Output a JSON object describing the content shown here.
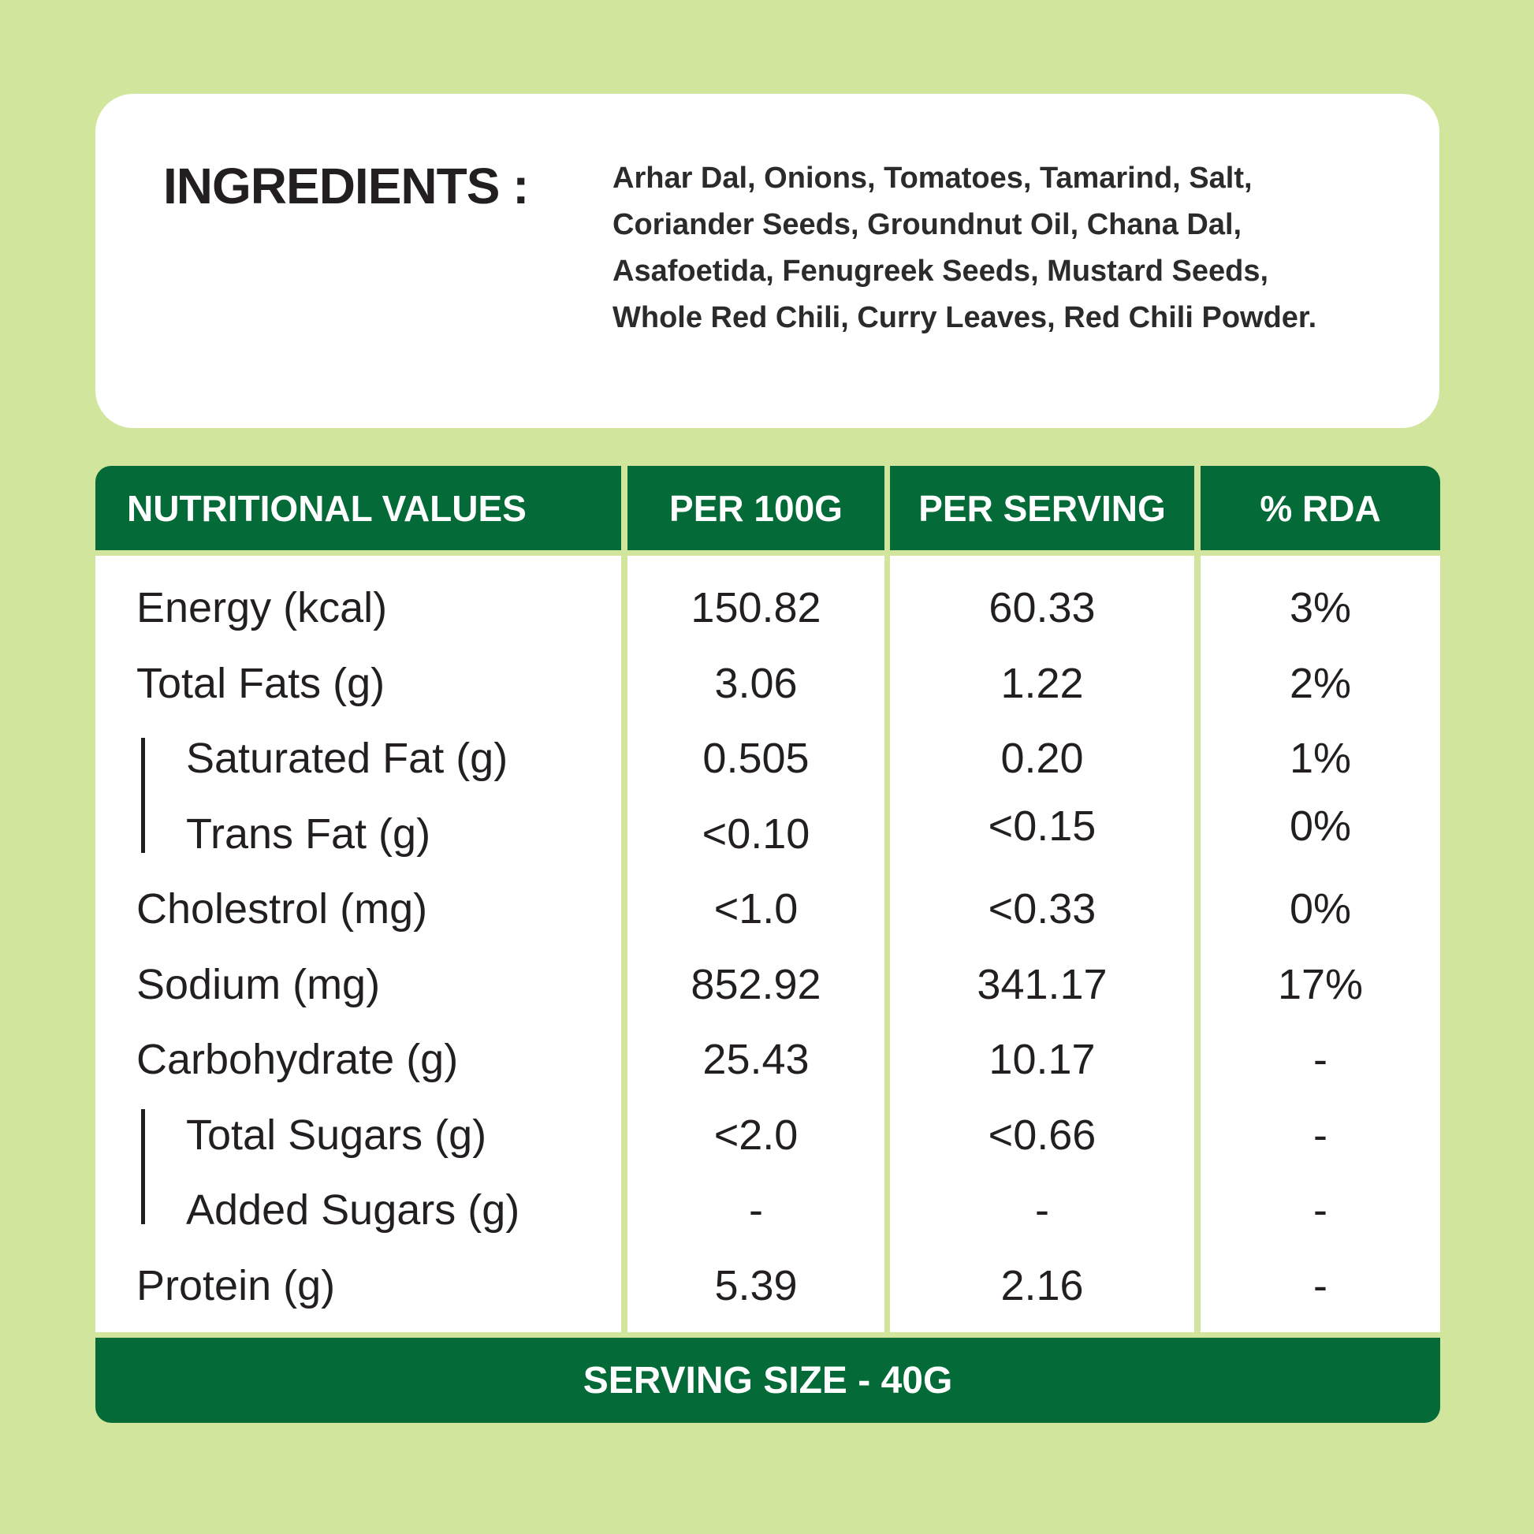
{
  "ingredients": {
    "heading": "INGREDIENTS :",
    "lines": [
      "Arhar Dal, Onions, Tomatoes, Tamarind, Salt,",
      "Coriander Seeds, Groundnut Oil, Chana Dal,",
      "Asafoetida, Fenugreek Seeds, Mustard Seeds,",
      "Whole Red Chili, Curry Leaves, Red Chili Powder."
    ]
  },
  "table": {
    "headers": [
      "NUTRITIONAL VALUES",
      "PER 100G",
      "PER SERVING",
      "% RDA"
    ],
    "rows": [
      {
        "name": "Energy (kcal)",
        "per100g": "150.82",
        "perServing": "60.33",
        "rda": "3%"
      },
      {
        "name": "Total Fats (g)",
        "per100g": "3.06",
        "perServing": "1.22",
        "rda": "2%"
      },
      {
        "name": "Saturated Fat (g)",
        "per100g": "0.505",
        "perServing": "0.20",
        "rda": "1%"
      },
      {
        "name": "Trans Fat (g)",
        "per100g": "<0.10",
        "perServing": "<0.15",
        "rda": "0%"
      },
      {
        "name": "Cholestrol (mg)",
        "per100g": "<1.0",
        "perServing": "<0.33",
        "rda": "0%"
      },
      {
        "name": "Sodium (mg)",
        "per100g": "852.92",
        "perServing": "341.17",
        "rda": "17%"
      },
      {
        "name": "Carbohydrate (g)",
        "per100g": "25.43",
        "perServing": "10.17",
        "rda": "-"
      },
      {
        "name": "Total Sugars (g)",
        "per100g": "<2.0",
        "perServing": "<0.66",
        "rda": "-"
      },
      {
        "name": "Added Sugars  (g)",
        "per100g": "-",
        "perServing": "-",
        "rda": "-"
      },
      {
        "name": "Protein (g)",
        "per100g": "5.39",
        "perServing": "2.16",
        "rda": "-"
      }
    ],
    "footer": "SERVING SIZE - 40G"
  },
  "colors": {
    "background": "#d1e69c",
    "header_green": "#046a37",
    "card": "#ffffff",
    "text": "#231f20"
  }
}
